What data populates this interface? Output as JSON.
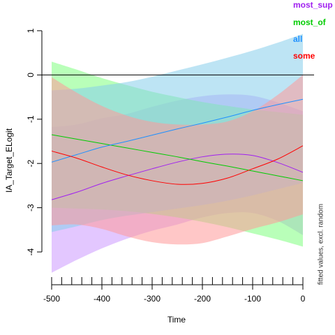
{
  "chart_data": {
    "type": "line",
    "xlabel": "Time",
    "ylabel": "IA_Target_ELogit",
    "side_label": "fitted values, excl. random",
    "xlim": [
      -500,
      0
    ],
    "ylim": [
      -4.5,
      1
    ],
    "x_ticks": [
      -500,
      -400,
      -300,
      -200,
      -100,
      0
    ],
    "y_ticks": [
      -4,
      -3,
      -2,
      -1,
      0,
      1
    ],
    "rug_x": [
      -500,
      -480,
      -460,
      -440,
      -420,
      -400,
      -380,
      -360,
      -340,
      -320,
      -300,
      -280,
      -260,
      -240,
      -220,
      -200,
      -180,
      -160,
      -140,
      -120,
      -100,
      -80,
      -60,
      -40,
      -20,
      0
    ],
    "reference_line_y": 0,
    "x": [
      -500,
      -450,
      -400,
      -350,
      -300,
      -250,
      -200,
      -150,
      -100,
      -50,
      0
    ],
    "series": [
      {
        "name": "most_sup",
        "color": "#a020f0",
        "fill": "#cc99ff",
        "values": [
          -2.82,
          -2.65,
          -2.45,
          -2.28,
          -2.12,
          -1.97,
          -1.85,
          -1.79,
          -1.82,
          -1.98,
          -2.2
        ],
        "lower": [
          -4.47,
          -4.18,
          -3.92,
          -3.7,
          -3.52,
          -3.38,
          -3.22,
          -3.12,
          -3.12,
          -3.3,
          -3.62
        ],
        "upper": [
          -1.18,
          -1.12,
          -0.98,
          -0.88,
          -0.72,
          -0.58,
          -0.48,
          -0.44,
          -0.47,
          -0.62,
          -0.82
        ]
      },
      {
        "name": "most_of",
        "color": "#00cc00",
        "fill": "#80ff80",
        "values": [
          -1.35,
          -1.45,
          -1.55,
          -1.65,
          -1.75,
          -1.85,
          -1.96,
          -2.06,
          -2.17,
          -2.28,
          -2.39
        ],
        "lower": [
          -3.0,
          -3.02,
          -3.04,
          -3.08,
          -3.14,
          -3.22,
          -3.32,
          -3.44,
          -3.58,
          -3.72,
          -3.88
        ],
        "upper": [
          0.3,
          0.12,
          -0.07,
          -0.23,
          -0.38,
          -0.5,
          -0.61,
          -0.7,
          -0.78,
          -0.84,
          -0.9
        ]
      },
      {
        "name": "all",
        "color": "#1e90ff",
        "fill": "#87ceeb",
        "values": [
          -1.97,
          -1.8,
          -1.63,
          -1.5,
          -1.36,
          -1.22,
          -1.09,
          -0.95,
          -0.8,
          -0.67,
          -0.55
        ],
        "lower": [
          -3.55,
          -3.42,
          -3.28,
          -3.18,
          -3.1,
          -3.02,
          -2.94,
          -2.84,
          -2.72,
          -2.58,
          -2.44
        ],
        "upper": [
          -0.35,
          -0.31,
          -0.24,
          -0.16,
          -0.04,
          0.1,
          0.24,
          0.39,
          0.55,
          0.73,
          0.93
        ]
      },
      {
        "name": "some",
        "color": "#ff0000",
        "fill": "#ff9999",
        "values": [
          -1.72,
          -1.88,
          -2.08,
          -2.26,
          -2.39,
          -2.47,
          -2.45,
          -2.33,
          -2.12,
          -1.9,
          -1.6
        ],
        "lower": [
          -3.4,
          -3.38,
          -3.48,
          -3.65,
          -3.78,
          -3.83,
          -3.8,
          -3.65,
          -3.48,
          -3.33,
          -3.15
        ],
        "upper": [
          -0.05,
          -0.4,
          -0.7,
          -0.92,
          -1.06,
          -1.12,
          -1.12,
          -1.05,
          -0.82,
          -0.45,
          0.0
        ]
      }
    ]
  }
}
